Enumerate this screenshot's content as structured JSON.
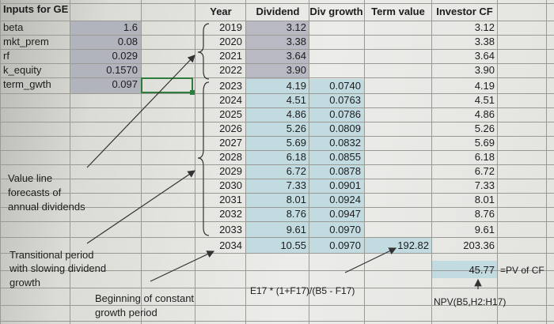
{
  "inputs": {
    "title": "Inputs for GE",
    "rows": [
      {
        "label": "beta",
        "value": "1.6"
      },
      {
        "label": "mkt_prem",
        "value": "0.08"
      },
      {
        "label": "rf",
        "value": "0.029"
      },
      {
        "label": "k_equity",
        "value": "0.1570"
      },
      {
        "label": "term_gwth",
        "value": "0.097"
      }
    ]
  },
  "headers": {
    "year": "Year",
    "dividend": "Dividend",
    "div_growth": "Div growth",
    "term_value": "Term value",
    "investor_cf": "Investor CF"
  },
  "rows": [
    {
      "year": "2019",
      "dividend": "3.12",
      "growth": "",
      "term": "",
      "cf": "3.12"
    },
    {
      "year": "2020",
      "dividend": "3.38",
      "growth": "",
      "term": "",
      "cf": "3.38"
    },
    {
      "year": "2021",
      "dividend": "3.64",
      "growth": "",
      "term": "",
      "cf": "3.64"
    },
    {
      "year": "2022",
      "dividend": "3.90",
      "growth": "",
      "term": "",
      "cf": "3.90"
    },
    {
      "year": "2023",
      "dividend": "4.19",
      "growth": "0.0740",
      "term": "",
      "cf": "4.19"
    },
    {
      "year": "2024",
      "dividend": "4.51",
      "growth": "0.0763",
      "term": "",
      "cf": "4.51"
    },
    {
      "year": "2025",
      "dividend": "4.86",
      "growth": "0.0786",
      "term": "",
      "cf": "4.86"
    },
    {
      "year": "2026",
      "dividend": "5.26",
      "growth": "0.0809",
      "term": "",
      "cf": "5.26"
    },
    {
      "year": "2027",
      "dividend": "5.69",
      "growth": "0.0832",
      "term": "",
      "cf": "5.69"
    },
    {
      "year": "2028",
      "dividend": "6.18",
      "growth": "0.0855",
      "term": "",
      "cf": "6.18"
    },
    {
      "year": "2029",
      "dividend": "6.72",
      "growth": "0.0878",
      "term": "",
      "cf": "6.72"
    },
    {
      "year": "2030",
      "dividend": "7.33",
      "growth": "0.0901",
      "term": "",
      "cf": "7.33"
    },
    {
      "year": "2031",
      "dividend": "8.01",
      "growth": "0.0924",
      "term": "",
      "cf": "8.01"
    },
    {
      "year": "2032",
      "dividend": "8.76",
      "growth": "0.0947",
      "term": "",
      "cf": "8.76"
    },
    {
      "year": "2033",
      "dividend": "9.61",
      "growth": "0.0970",
      "term": "",
      "cf": "9.61"
    },
    {
      "year": "2034",
      "dividend": "10.55",
      "growth": "0.0970",
      "term": "192.82",
      "cf": "203.36"
    }
  ],
  "annotations": {
    "value_line": [
      "Value line",
      "forecasts of",
      "annual dividends"
    ],
    "transitional": [
      "Transitional period",
      "with slowing dividend",
      "growth"
    ],
    "beginning": [
      "Beginning of constant",
      "growth period"
    ],
    "term_formula": "E17 * (1+F17)/(B5 - F17)",
    "npv_value": "45.77",
    "pv_label": "=PV of CF",
    "npv_formula": "NPV(B5,H2:H17)"
  },
  "colors": {
    "input_fill": "#b2b4bd",
    "dividend_fill": "#b8b9c2",
    "growth_fill": "#c2dbe0",
    "selected_border": "#2f7d3e"
  }
}
